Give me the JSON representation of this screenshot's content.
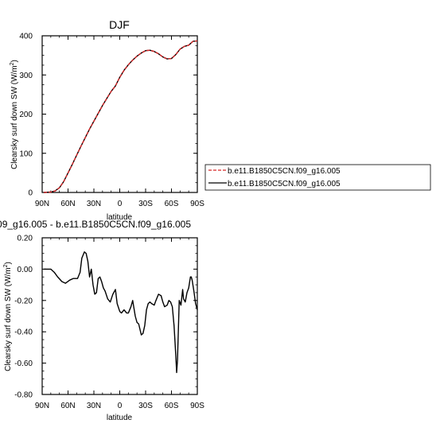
{
  "chart_data": [
    {
      "type": "line",
      "title": "DJF",
      "xlabel": "latitude",
      "ylabel": "Clearsky surf down SW (W/m²)",
      "xlim": [
        -90,
        90
      ],
      "ylim": [
        0,
        400
      ],
      "xticks": [
        -90,
        -60,
        -30,
        0,
        30,
        60,
        90
      ],
      "xtick_labels": [
        "90N",
        "60N",
        "30N",
        "0",
        "30S",
        "60S",
        "90S"
      ],
      "yticks": [
        0,
        100,
        200,
        300,
        400
      ],
      "ytick_labels": [
        "0",
        "100",
        "200",
        "300",
        "400"
      ],
      "legend_position": "right",
      "series": [
        {
          "name": "b.e11.B1850C5CN.f09_g16.005",
          "color": "#d62728",
          "dash": "dashed",
          "x": [
            -88,
            -80,
            -75,
            -70,
            -65,
            -60,
            -55,
            -50,
            -45,
            -40,
            -35,
            -30,
            -25,
            -20,
            -15,
            -10,
            -5,
            0,
            5,
            10,
            15,
            20,
            25,
            30,
            35,
            40,
            45,
            50,
            55,
            60,
            65,
            70,
            75,
            80,
            85,
            90
          ],
          "y": [
            0,
            1,
            4,
            12,
            28,
            50,
            72,
            95,
            118,
            140,
            162,
            182,
            202,
            222,
            240,
            258,
            272,
            294,
            312,
            326,
            338,
            348,
            356,
            362,
            363,
            360,
            354,
            346,
            341,
            342,
            352,
            366,
            373,
            376,
            386,
            387
          ]
        },
        {
          "name": "b.e11.B1850C5CN.f09_g16.005",
          "color": "#000000",
          "dash": "solid",
          "x": [
            -88,
            -80,
            -75,
            -70,
            -65,
            -60,
            -55,
            -50,
            -45,
            -40,
            -35,
            -30,
            -25,
            -20,
            -15,
            -10,
            -5,
            0,
            5,
            10,
            15,
            20,
            25,
            30,
            35,
            40,
            45,
            50,
            55,
            60,
            65,
            70,
            75,
            80,
            85,
            90
          ],
          "y": [
            0,
            1,
            4,
            12,
            28,
            50,
            72,
            95,
            118,
            140,
            162,
            182,
            202,
            222,
            240,
            258,
            272,
            294,
            312,
            326,
            338,
            348,
            356,
            362,
            363,
            360,
            354,
            346,
            341,
            342,
            352,
            366,
            373,
            376,
            386,
            387
          ]
        }
      ]
    },
    {
      "type": "line",
      "title": "09_g16.005 - b.e11.B1850C5CN.f09_g16.005",
      "xlabel": "latitude",
      "ylabel": "Clearsky surf down SW (W/m²)",
      "xlim": [
        -90,
        90
      ],
      "ylim": [
        -0.8,
        0.2
      ],
      "xticks": [
        -90,
        -60,
        -30,
        0,
        30,
        60,
        90
      ],
      "xtick_labels": [
        "90N",
        "60N",
        "30N",
        "0",
        "30S",
        "60S",
        "90S"
      ],
      "yticks": [
        -0.8,
        -0.6,
        -0.4,
        -0.2,
        0.0,
        0.2
      ],
      "ytick_labels": [
        "-0.80",
        "-0.60",
        "-0.40",
        "-0.20",
        "0.00",
        "0.20"
      ],
      "series": [
        {
          "color": "#000000",
          "dash": "solid",
          "x": [
            -88,
            -80,
            -76,
            -72,
            -67,
            -63,
            -58,
            -54,
            -51,
            -49,
            -46,
            -44,
            -41,
            -39,
            -37,
            -35,
            -33,
            -31,
            -29,
            -27,
            -25,
            -23,
            -21,
            -19,
            -17,
            -14,
            -11,
            -8,
            -5,
            -3,
            0,
            2,
            5,
            8,
            10,
            13,
            15,
            18,
            20,
            22,
            25,
            27,
            29,
            31,
            33,
            35,
            37,
            40,
            42,
            45,
            48,
            50,
            52,
            55,
            57,
            59,
            61,
            63,
            65,
            66,
            67,
            69,
            71,
            73,
            74,
            76,
            78,
            80,
            82,
            83,
            84,
            86,
            88,
            90
          ],
          "y": [
            0.0,
            0.0,
            -0.02,
            -0.05,
            -0.08,
            -0.09,
            -0.07,
            -0.06,
            -0.06,
            -0.06,
            -0.02,
            0.07,
            0.11,
            0.1,
            0.05,
            -0.05,
            0.0,
            -0.1,
            -0.16,
            -0.15,
            -0.06,
            -0.05,
            -0.08,
            -0.12,
            -0.14,
            -0.19,
            -0.21,
            -0.16,
            -0.13,
            -0.22,
            -0.27,
            -0.28,
            -0.26,
            -0.28,
            -0.28,
            -0.24,
            -0.2,
            -0.3,
            -0.34,
            -0.35,
            -0.42,
            -0.41,
            -0.36,
            -0.26,
            -0.22,
            -0.21,
            -0.22,
            -0.23,
            -0.2,
            -0.16,
            -0.17,
            -0.21,
            -0.24,
            -0.23,
            -0.2,
            -0.21,
            -0.24,
            -0.36,
            -0.55,
            -0.66,
            -0.58,
            -0.2,
            -0.23,
            -0.13,
            -0.19,
            -0.21,
            -0.15,
            -0.12,
            -0.05,
            -0.05,
            -0.07,
            -0.14,
            -0.22,
            -0.26
          ]
        }
      ]
    }
  ]
}
